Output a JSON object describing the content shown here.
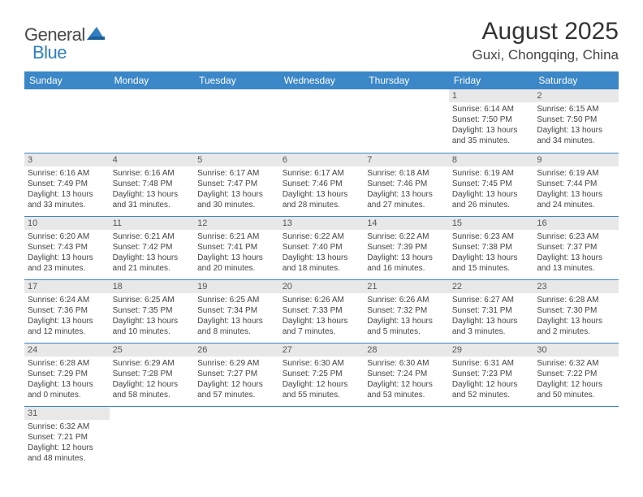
{
  "header": {
    "logo_general": "General",
    "logo_blue": "Blue",
    "month_title": "August 2025",
    "location": "Guxi, Chongqing, China"
  },
  "colors": {
    "header_bg": "#3b87c8",
    "header_text": "#ffffff",
    "grid_line": "#3b87c8",
    "daynum_bg": "#e8e8e8",
    "daynum_text": "#555555",
    "body_text": "#444444",
    "logo_gray": "#4a4a4a",
    "logo_blue": "#2f7fc1",
    "page_bg": "#ffffff"
  },
  "typography": {
    "title_fontsize": 30,
    "location_fontsize": 17,
    "weekday_fontsize": 12,
    "daynum_fontsize": 11,
    "cell_fontsize": 10,
    "logo_fontsize": 22
  },
  "calendar": {
    "weekdays": [
      "Sunday",
      "Monday",
      "Tuesday",
      "Wednesday",
      "Thursday",
      "Friday",
      "Saturday"
    ],
    "weeks": [
      [
        null,
        null,
        null,
        null,
        null,
        {
          "day": "1",
          "sunrise": "Sunrise: 6:14 AM",
          "sunset": "Sunset: 7:50 PM",
          "daylight": "Daylight: 13 hours and 35 minutes."
        },
        {
          "day": "2",
          "sunrise": "Sunrise: 6:15 AM",
          "sunset": "Sunset: 7:50 PM",
          "daylight": "Daylight: 13 hours and 34 minutes."
        }
      ],
      [
        {
          "day": "3",
          "sunrise": "Sunrise: 6:16 AM",
          "sunset": "Sunset: 7:49 PM",
          "daylight": "Daylight: 13 hours and 33 minutes."
        },
        {
          "day": "4",
          "sunrise": "Sunrise: 6:16 AM",
          "sunset": "Sunset: 7:48 PM",
          "daylight": "Daylight: 13 hours and 31 minutes."
        },
        {
          "day": "5",
          "sunrise": "Sunrise: 6:17 AM",
          "sunset": "Sunset: 7:47 PM",
          "daylight": "Daylight: 13 hours and 30 minutes."
        },
        {
          "day": "6",
          "sunrise": "Sunrise: 6:17 AM",
          "sunset": "Sunset: 7:46 PM",
          "daylight": "Daylight: 13 hours and 28 minutes."
        },
        {
          "day": "7",
          "sunrise": "Sunrise: 6:18 AM",
          "sunset": "Sunset: 7:46 PM",
          "daylight": "Daylight: 13 hours and 27 minutes."
        },
        {
          "day": "8",
          "sunrise": "Sunrise: 6:19 AM",
          "sunset": "Sunset: 7:45 PM",
          "daylight": "Daylight: 13 hours and 26 minutes."
        },
        {
          "day": "9",
          "sunrise": "Sunrise: 6:19 AM",
          "sunset": "Sunset: 7:44 PM",
          "daylight": "Daylight: 13 hours and 24 minutes."
        }
      ],
      [
        {
          "day": "10",
          "sunrise": "Sunrise: 6:20 AM",
          "sunset": "Sunset: 7:43 PM",
          "daylight": "Daylight: 13 hours and 23 minutes."
        },
        {
          "day": "11",
          "sunrise": "Sunrise: 6:21 AM",
          "sunset": "Sunset: 7:42 PM",
          "daylight": "Daylight: 13 hours and 21 minutes."
        },
        {
          "day": "12",
          "sunrise": "Sunrise: 6:21 AM",
          "sunset": "Sunset: 7:41 PM",
          "daylight": "Daylight: 13 hours and 20 minutes."
        },
        {
          "day": "13",
          "sunrise": "Sunrise: 6:22 AM",
          "sunset": "Sunset: 7:40 PM",
          "daylight": "Daylight: 13 hours and 18 minutes."
        },
        {
          "day": "14",
          "sunrise": "Sunrise: 6:22 AM",
          "sunset": "Sunset: 7:39 PM",
          "daylight": "Daylight: 13 hours and 16 minutes."
        },
        {
          "day": "15",
          "sunrise": "Sunrise: 6:23 AM",
          "sunset": "Sunset: 7:38 PM",
          "daylight": "Daylight: 13 hours and 15 minutes."
        },
        {
          "day": "16",
          "sunrise": "Sunrise: 6:23 AM",
          "sunset": "Sunset: 7:37 PM",
          "daylight": "Daylight: 13 hours and 13 minutes."
        }
      ],
      [
        {
          "day": "17",
          "sunrise": "Sunrise: 6:24 AM",
          "sunset": "Sunset: 7:36 PM",
          "daylight": "Daylight: 13 hours and 12 minutes."
        },
        {
          "day": "18",
          "sunrise": "Sunrise: 6:25 AM",
          "sunset": "Sunset: 7:35 PM",
          "daylight": "Daylight: 13 hours and 10 minutes."
        },
        {
          "day": "19",
          "sunrise": "Sunrise: 6:25 AM",
          "sunset": "Sunset: 7:34 PM",
          "daylight": "Daylight: 13 hours and 8 minutes."
        },
        {
          "day": "20",
          "sunrise": "Sunrise: 6:26 AM",
          "sunset": "Sunset: 7:33 PM",
          "daylight": "Daylight: 13 hours and 7 minutes."
        },
        {
          "day": "21",
          "sunrise": "Sunrise: 6:26 AM",
          "sunset": "Sunset: 7:32 PM",
          "daylight": "Daylight: 13 hours and 5 minutes."
        },
        {
          "day": "22",
          "sunrise": "Sunrise: 6:27 AM",
          "sunset": "Sunset: 7:31 PM",
          "daylight": "Daylight: 13 hours and 3 minutes."
        },
        {
          "day": "23",
          "sunrise": "Sunrise: 6:28 AM",
          "sunset": "Sunset: 7:30 PM",
          "daylight": "Daylight: 13 hours and 2 minutes."
        }
      ],
      [
        {
          "day": "24",
          "sunrise": "Sunrise: 6:28 AM",
          "sunset": "Sunset: 7:29 PM",
          "daylight": "Daylight: 13 hours and 0 minutes."
        },
        {
          "day": "25",
          "sunrise": "Sunrise: 6:29 AM",
          "sunset": "Sunset: 7:28 PM",
          "daylight": "Daylight: 12 hours and 58 minutes."
        },
        {
          "day": "26",
          "sunrise": "Sunrise: 6:29 AM",
          "sunset": "Sunset: 7:27 PM",
          "daylight": "Daylight: 12 hours and 57 minutes."
        },
        {
          "day": "27",
          "sunrise": "Sunrise: 6:30 AM",
          "sunset": "Sunset: 7:25 PM",
          "daylight": "Daylight: 12 hours and 55 minutes."
        },
        {
          "day": "28",
          "sunrise": "Sunrise: 6:30 AM",
          "sunset": "Sunset: 7:24 PM",
          "daylight": "Daylight: 12 hours and 53 minutes."
        },
        {
          "day": "29",
          "sunrise": "Sunrise: 6:31 AM",
          "sunset": "Sunset: 7:23 PM",
          "daylight": "Daylight: 12 hours and 52 minutes."
        },
        {
          "day": "30",
          "sunrise": "Sunrise: 6:32 AM",
          "sunset": "Sunset: 7:22 PM",
          "daylight": "Daylight: 12 hours and 50 minutes."
        }
      ],
      [
        {
          "day": "31",
          "sunrise": "Sunrise: 6:32 AM",
          "sunset": "Sunset: 7:21 PM",
          "daylight": "Daylight: 12 hours and 48 minutes."
        },
        null,
        null,
        null,
        null,
        null,
        null
      ]
    ]
  }
}
